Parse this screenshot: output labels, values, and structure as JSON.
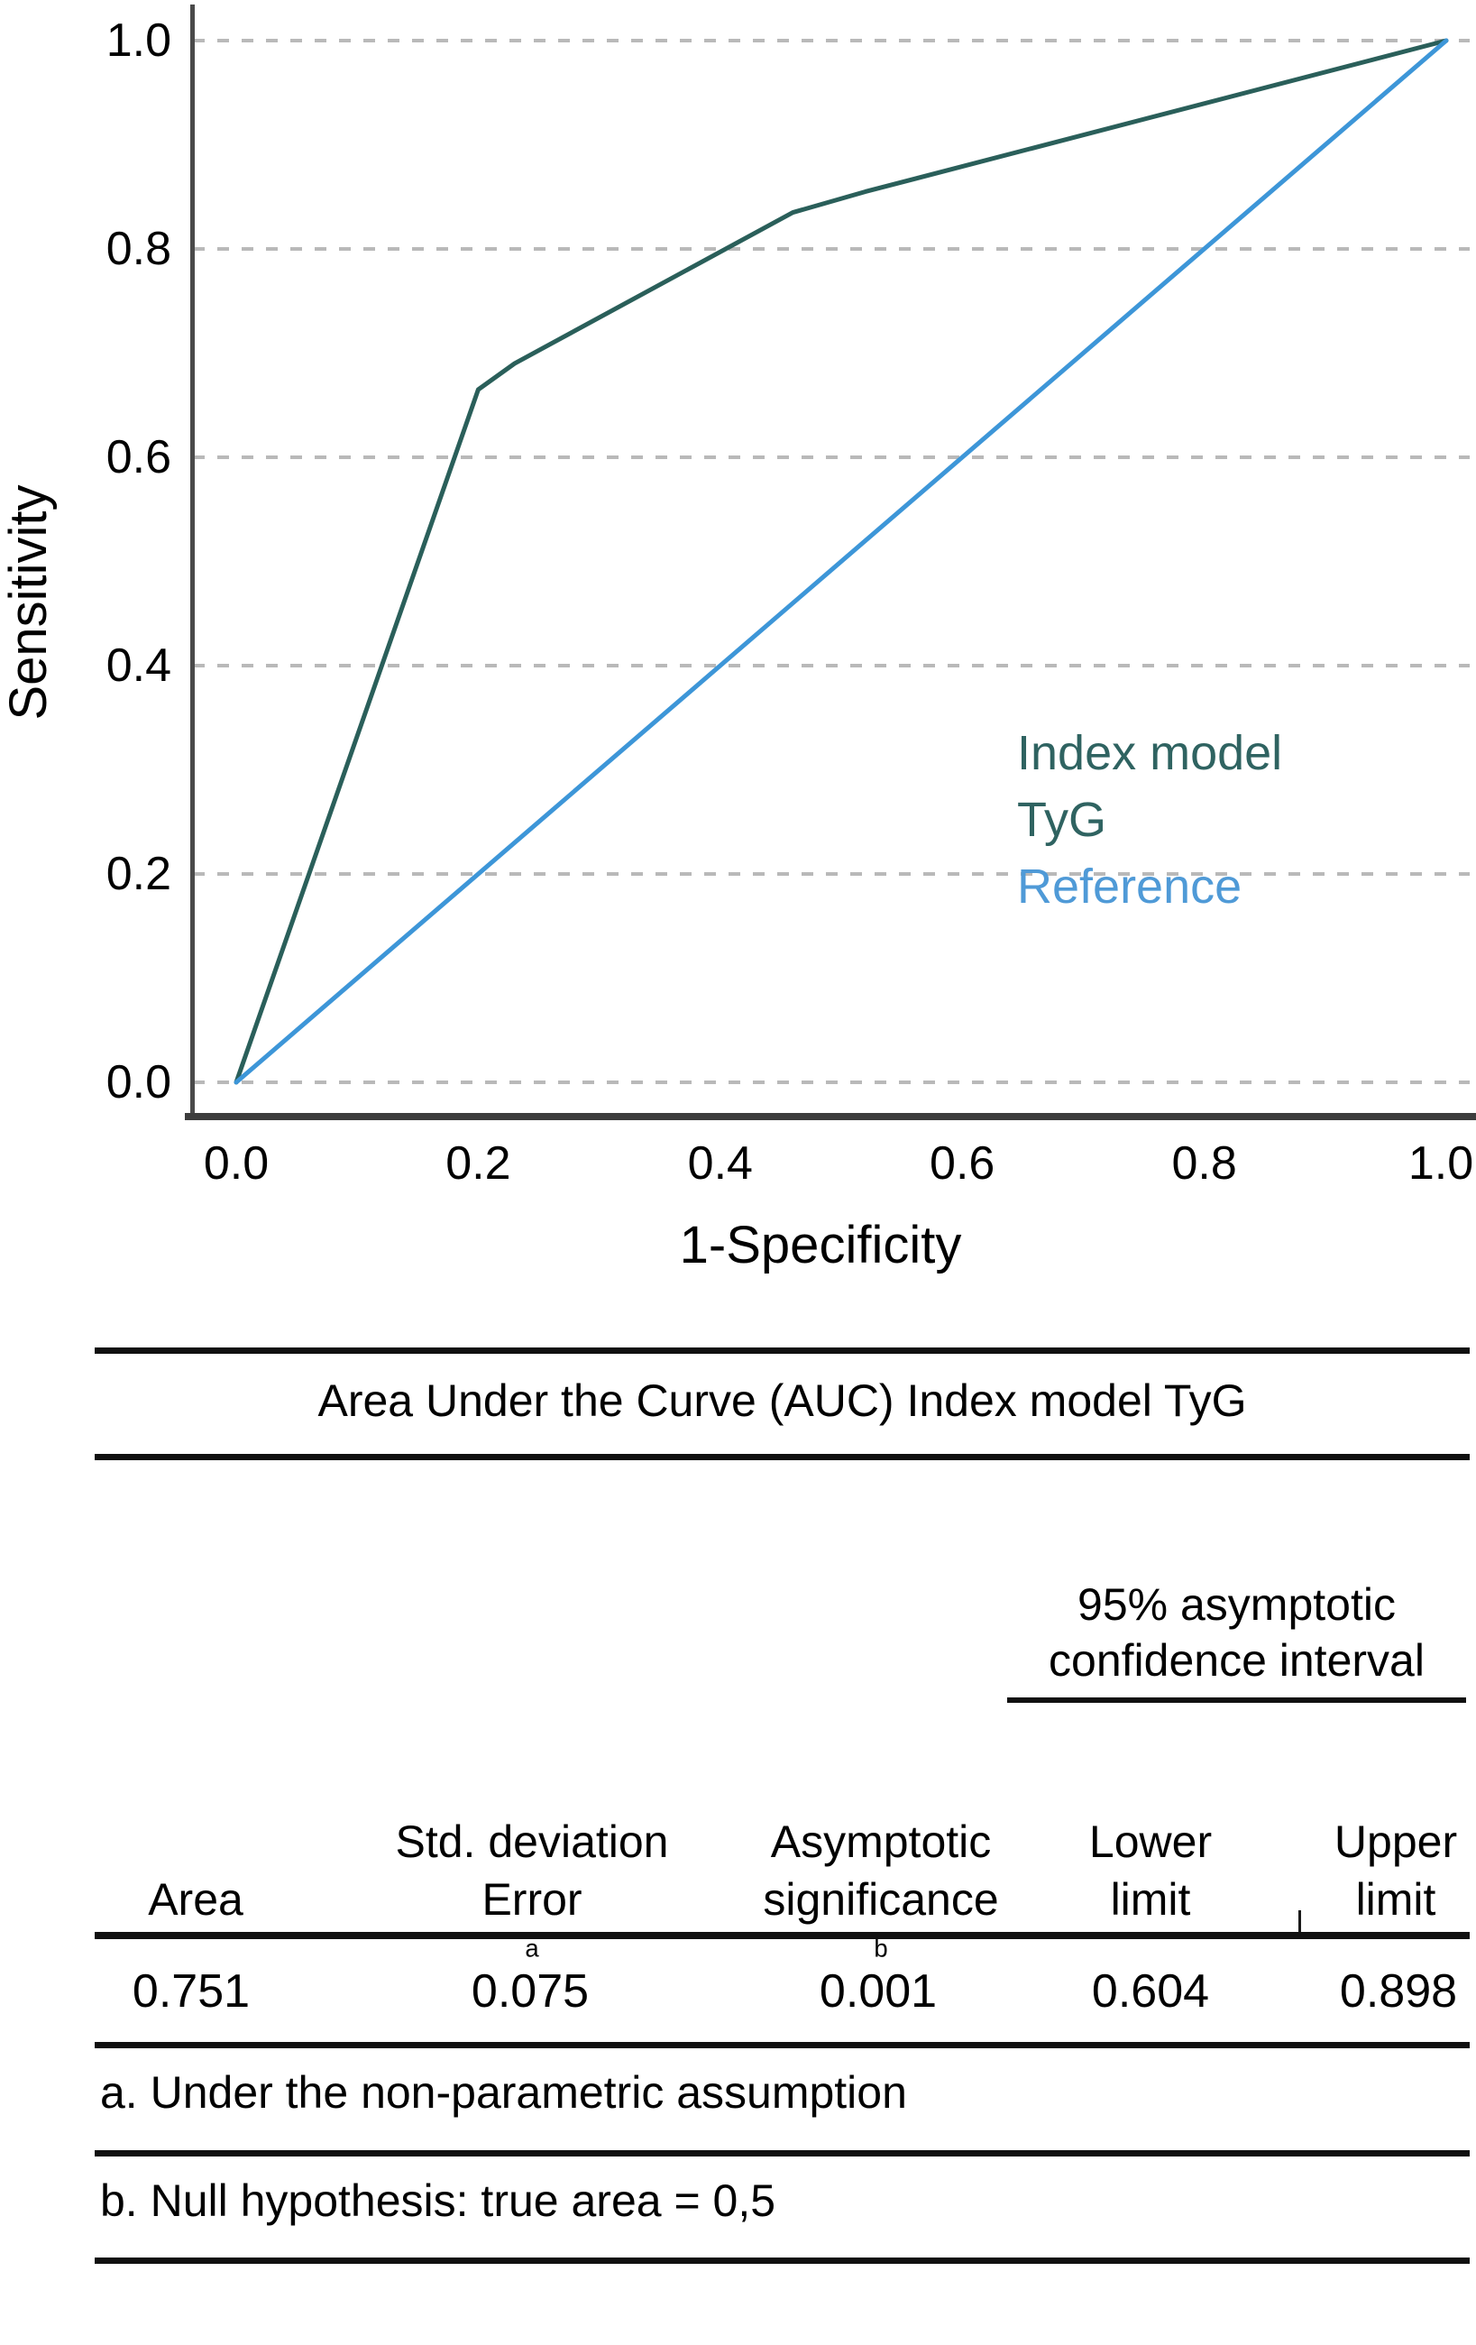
{
  "figure": {
    "chart": {
      "y_axis_title": "Sensitivity",
      "x_axis_title": "1-Specificity",
      "legend": {
        "title": "Index model",
        "title_color": "#2f6361",
        "entries": [
          {
            "label": "TyG",
            "color": "#2f6361"
          },
          {
            "label": "Reference",
            "color": "#4f9ad7"
          }
        ]
      }
    }
  },
  "chart_data": {
    "type": "line",
    "title": "",
    "xlabel": "1-Specificity",
    "ylabel": "Sensitivity",
    "xlim": [
      0.0,
      1.0
    ],
    "ylim": [
      0.0,
      1.0
    ],
    "x_ticks": [
      0.0,
      0.2,
      0.4,
      0.6,
      0.8,
      1.0
    ],
    "y_ticks": [
      0.0,
      0.2,
      0.4,
      0.6,
      0.8,
      1.0
    ],
    "grid": "horizontal-dashed",
    "grid_color": "#b9b9b9",
    "legend_position": "lower-right-inside",
    "series": [
      {
        "name": "TyG",
        "color": "#2a5f5a",
        "points": [
          [
            0.0,
            0.0
          ],
          [
            0.2,
            0.665
          ],
          [
            0.23,
            0.69
          ],
          [
            0.46,
            0.835
          ],
          [
            0.52,
            0.855
          ],
          [
            1.0,
            1.0
          ]
        ]
      },
      {
        "name": "Reference",
        "color": "#3d96d8",
        "points": [
          [
            0.0,
            0.0
          ],
          [
            1.0,
            1.0
          ]
        ]
      }
    ]
  },
  "table": {
    "title": "Area Under the Curve (AUC) Index model TyG",
    "ci_header": {
      "line1": "95% asymptotic",
      "line2": "confidence interval"
    },
    "columns": [
      {
        "line1": "",
        "line2": "Area",
        "sup": ""
      },
      {
        "line1": "Std. deviation",
        "line2": "Error",
        "sup": "a"
      },
      {
        "line1": "Asymptotic",
        "line2": "significance",
        "sup": "b"
      },
      {
        "line1": "Lower",
        "line2": "limit",
        "sup": ""
      },
      {
        "line1": "Upper",
        "line2": "limit",
        "sup": ""
      }
    ],
    "row": [
      "0.751",
      "0.075",
      "0.001",
      "0.604",
      "0.898"
    ],
    "footnotes": [
      "a. Under the non-parametric assumption",
      "b. Null hypothesis: true area = 0,5"
    ]
  }
}
